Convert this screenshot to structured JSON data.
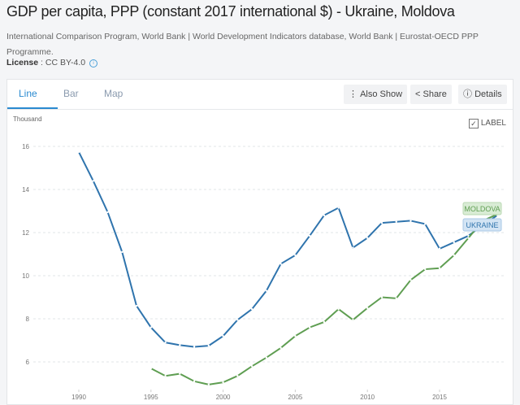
{
  "title": "GDP per capita, PPP (constant 2017 international $) - Ukraine, Moldova",
  "source": "International Comparison Program, World Bank | World Development Indicators database, World Bank | Eurostat-OECD PPP Programme.",
  "license_label": "License",
  "license_value": ": CC BY-4.0",
  "info_icon": "i",
  "tabs": [
    "Line",
    "Bar",
    "Map"
  ],
  "buttons": {
    "also_show": "Also Show",
    "share": "Share",
    "details": "Details"
  },
  "unit_label": "Thousand",
  "label_toggle": "LABEL",
  "colors": {
    "ukraine": "#2f74ad",
    "moldova": "#5f9e52"
  },
  "chart_data": {
    "type": "line",
    "title": "GDP per capita, PPP (constant 2017 international $) - Ukraine, Moldova",
    "ylabel": "Thousand",
    "ylim": [
      5,
      16.5
    ],
    "yticks": [
      6,
      8,
      10,
      12,
      14,
      16
    ],
    "xticks": [
      1990,
      1995,
      2000,
      2005,
      2010,
      2015
    ],
    "grid": true,
    "series": [
      {
        "name": "UKRAINE",
        "x_start": 1990,
        "values": [
          15.74,
          14.4,
          12.95,
          11.1,
          8.6,
          7.6,
          6.9,
          6.78,
          6.7,
          6.75,
          7.2,
          7.95,
          8.45,
          9.3,
          10.55,
          10.95,
          11.85,
          12.8,
          13.15,
          11.3,
          11.75,
          12.45,
          12.5,
          12.55,
          12.4,
          11.25,
          11.55,
          11.85,
          12.35,
          12.8
        ]
      },
      {
        "name": "MOLDOVA",
        "x_start": 1995,
        "values": [
          5.7,
          5.35,
          5.45,
          5.1,
          4.95,
          5.05,
          5.35,
          5.8,
          6.2,
          6.65,
          7.2,
          7.6,
          7.85,
          8.45,
          7.95,
          8.5,
          9.0,
          8.95,
          9.8,
          10.3,
          10.35,
          10.95,
          11.75,
          12.55,
          12.85
        ]
      }
    ]
  }
}
